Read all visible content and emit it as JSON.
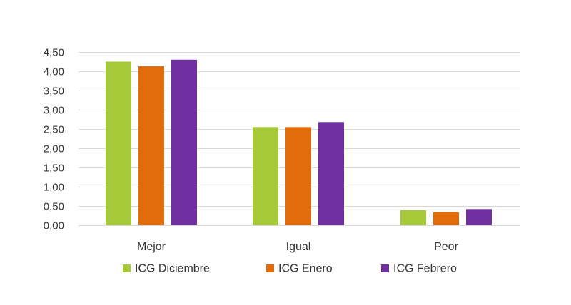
{
  "chart_data": {
    "type": "bar",
    "title": "",
    "xlabel": "",
    "ylabel": "",
    "categories": [
      "Mejor",
      "Igual",
      "Peor"
    ],
    "series": [
      {
        "name": "ICG Diciembre",
        "color": "#a6c93a",
        "values": [
          4.25,
          2.55,
          0.39
        ]
      },
      {
        "name": "ICG Enero",
        "color": "#e36c0a",
        "values": [
          4.13,
          2.55,
          0.34
        ]
      },
      {
        "name": "ICG Febrero",
        "color": "#7030a0",
        "values": [
          4.3,
          2.68,
          0.42
        ]
      }
    ],
    "ylim": [
      0,
      4.5
    ],
    "yticks": [
      "0,00",
      "0,50",
      "1,00",
      "1,50",
      "2,00",
      "2,50",
      "3,00",
      "3,50",
      "4,00",
      "4,50"
    ],
    "ytick_values": [
      0,
      0.5,
      1,
      1.5,
      2,
      2.5,
      3,
      3.5,
      4,
      4.5
    ],
    "grid": true,
    "legend_position": "bottom"
  }
}
